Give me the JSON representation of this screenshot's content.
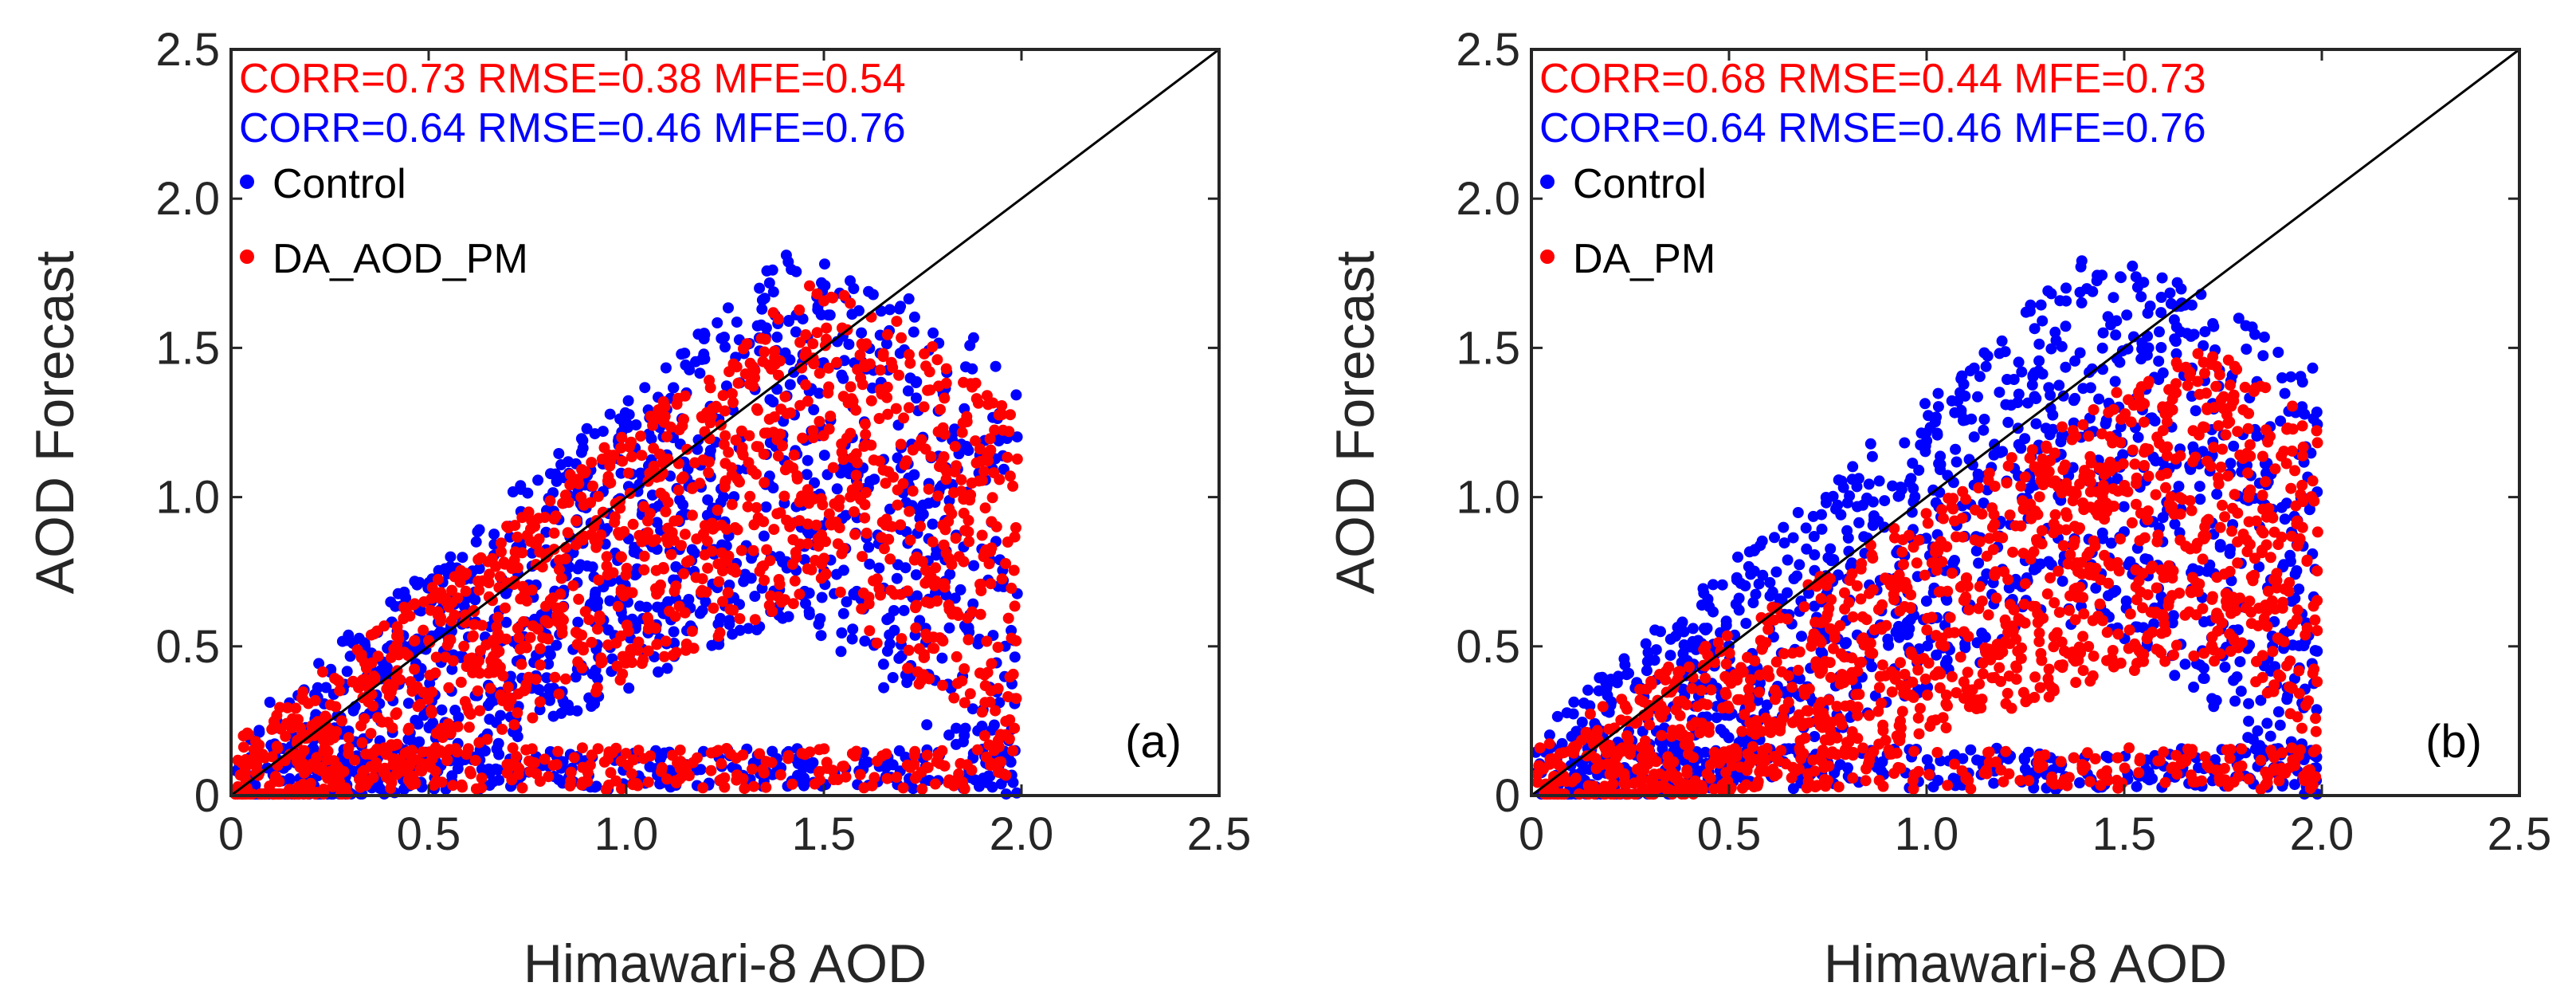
{
  "chart_data": [
    {
      "type": "scatter",
      "panel_label": "(a)",
      "xlabel": "Himawari-8 AOD",
      "ylabel": "AOD Forecast",
      "xlim": [
        0,
        2.5
      ],
      "ylim": [
        0,
        2.5
      ],
      "xticks": [
        "0",
        "0.5",
        "1.0",
        "1.5",
        "2.0",
        "2.5"
      ],
      "yticks": [
        "0",
        "0.5",
        "1.0",
        "1.5",
        "2.0",
        "2.5"
      ],
      "reference_line": "1:1",
      "legend_position": "top-left",
      "stats": [
        {
          "text": "CORR=0.73 RMSE=0.38 MFE=0.54",
          "color": "#ff0000"
        },
        {
          "text": "CORR=0.64 RMSE=0.46 MFE=0.76",
          "color": "#0000ff"
        }
      ],
      "series": [
        {
          "name": "Control",
          "color": "#0000ff",
          "slope": 0.9,
          "spread": 0.5
        },
        {
          "name": "DA_AOD_PM",
          "color": "#ff0000",
          "slope": 0.85,
          "spread": 0.42
        }
      ]
    },
    {
      "type": "scatter",
      "panel_label": "(b)",
      "xlabel": "Himawari-8 AOD",
      "ylabel": "AOD Forecast",
      "xlim": [
        0,
        2.5
      ],
      "ylim": [
        0,
        2.5
      ],
      "xticks": [
        "0",
        "0.5",
        "1.0",
        "1.5",
        "2.0",
        "2.5"
      ],
      "yticks": [
        "0",
        "0.5",
        "1.0",
        "1.5",
        "2.0",
        "2.5"
      ],
      "reference_line": "1:1",
      "legend_position": "top-left",
      "stats": [
        {
          "text": "CORR=0.68 RMSE=0.44 MFE=0.73",
          "color": "#ff0000"
        },
        {
          "text": "CORR=0.64 RMSE=0.46 MFE=0.76",
          "color": "#0000ff"
        }
      ],
      "series": [
        {
          "name": "Control",
          "color": "#0000ff",
          "slope": 0.9,
          "spread": 0.5
        },
        {
          "name": "DA_PM",
          "color": "#ff0000",
          "slope": 0.62,
          "spread": 0.38
        }
      ]
    }
  ]
}
